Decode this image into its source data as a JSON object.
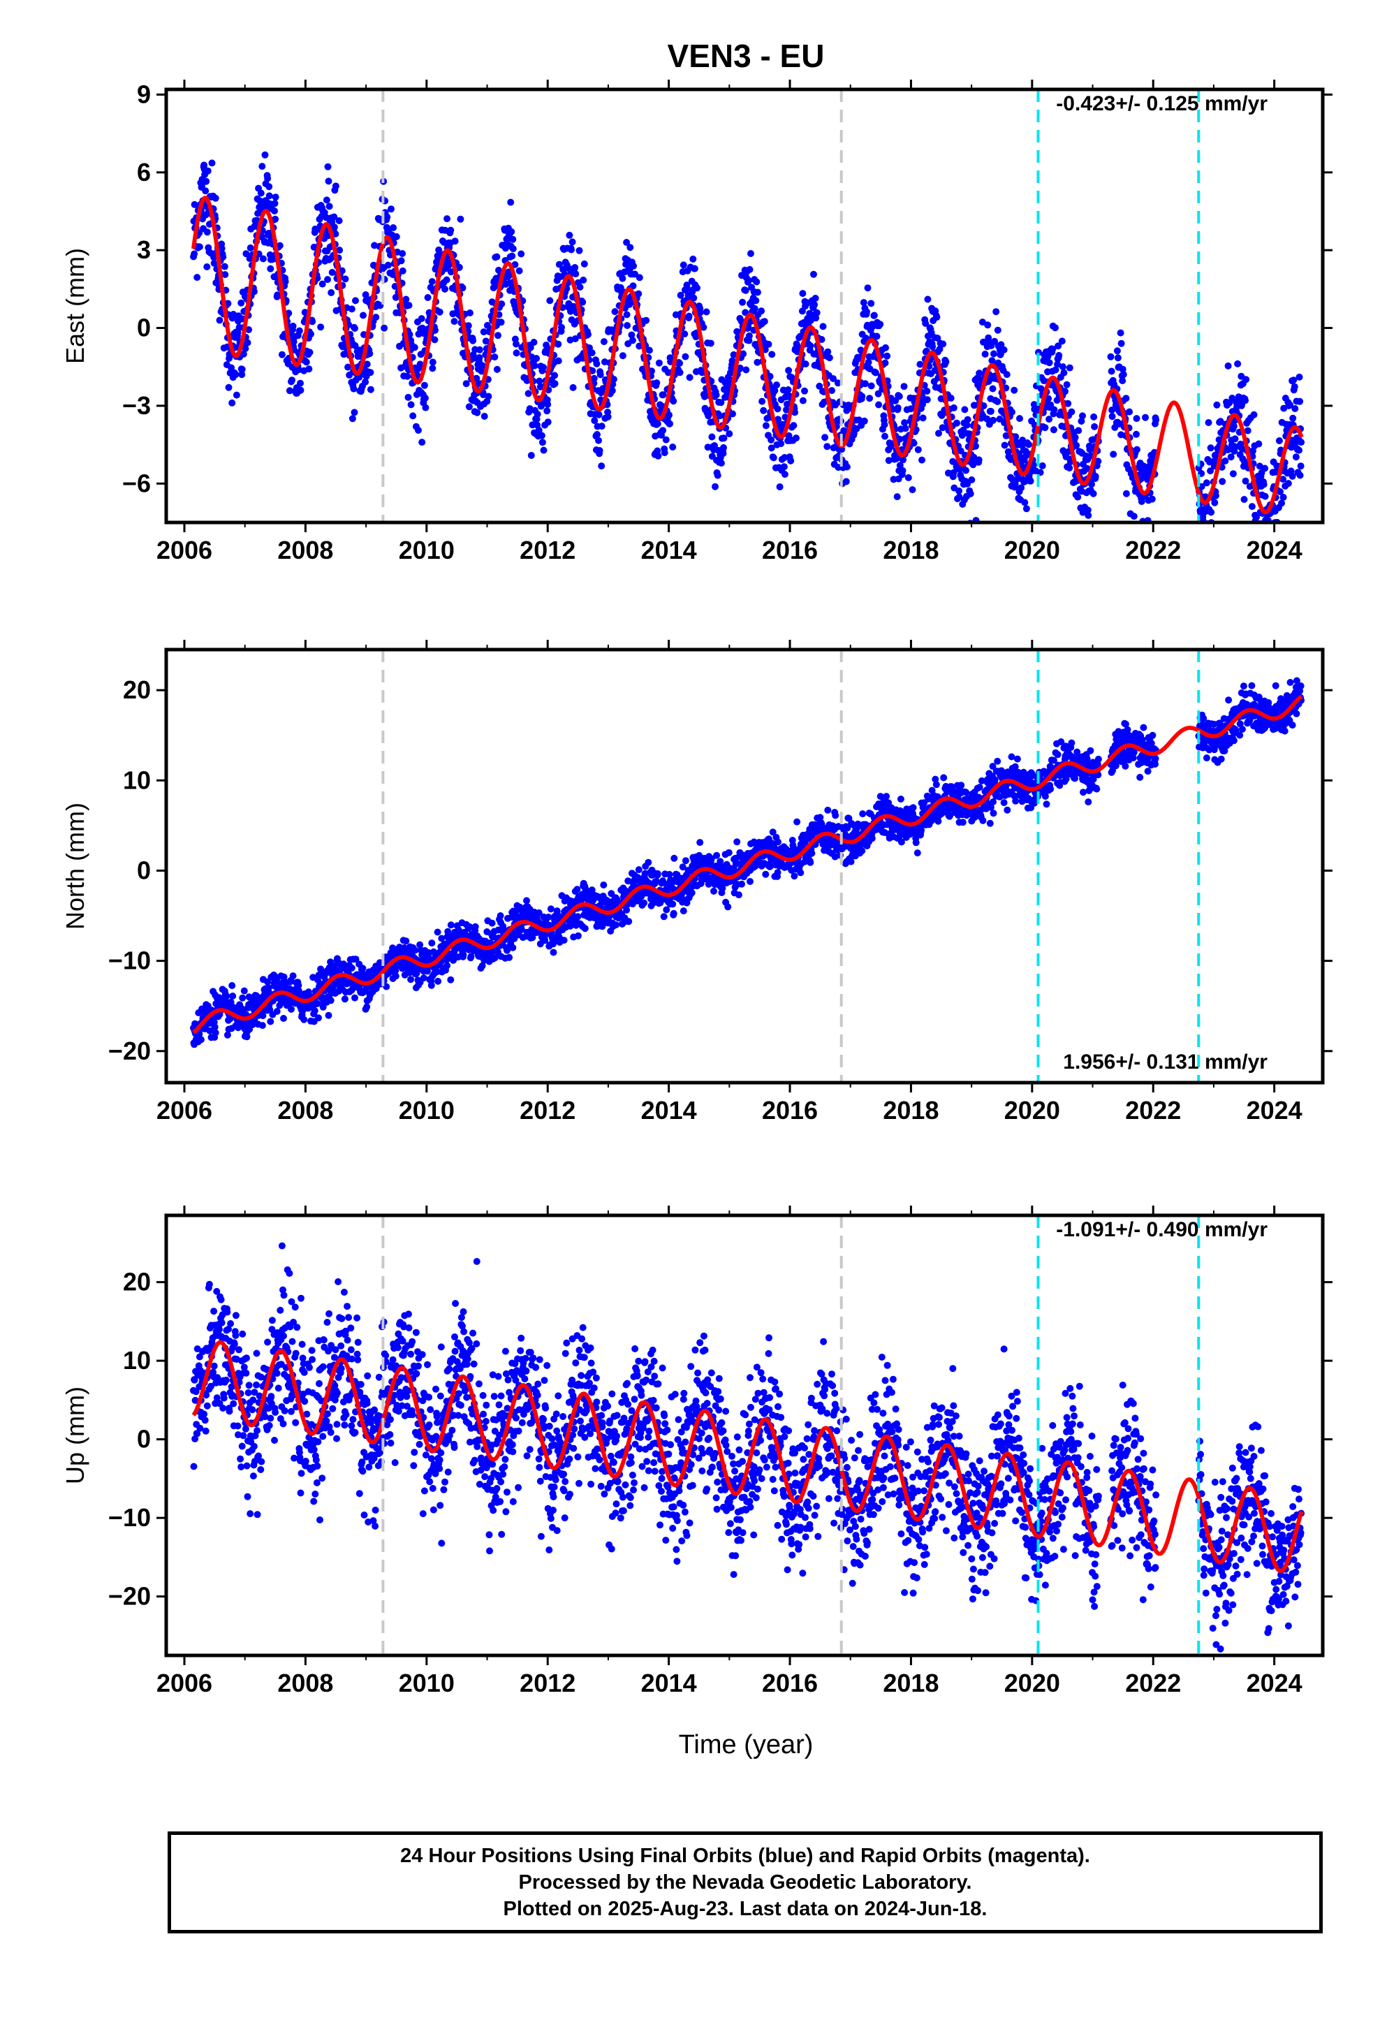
{
  "title": "VEN3 - EU",
  "xlabel": "Time (year)",
  "xticks": [
    2006,
    2008,
    2010,
    2012,
    2014,
    2016,
    2018,
    2020,
    2022,
    2024
  ],
  "xlim": [
    2005.7,
    2024.8
  ],
  "vertical_lines": [
    {
      "year": 2009.28,
      "color": "#c8c8c8"
    },
    {
      "year": 2016.85,
      "color": "#c8c8c8"
    },
    {
      "year": 2020.1,
      "color": "#00e5ee"
    },
    {
      "year": 2022.75,
      "color": "#00e5ee"
    }
  ],
  "colors": {
    "points": "#0000ff",
    "model": "#ff0000",
    "gray_line": "#c8c8c8",
    "cyan_line": "#00e5ee"
  },
  "chart_data": [
    {
      "type": "scatter",
      "name": "East",
      "ylabel": "East (mm)",
      "ylim": [
        -7.5,
        9.2
      ],
      "yticks": [
        -6,
        -3,
        0,
        3,
        6,
        9
      ],
      "velocity": "-0.423+/- 0.125 mm/yr",
      "annotation_position": "top-right",
      "model": {
        "offset": 2.2,
        "trend": -0.423,
        "amplitude": 3.0,
        "amp_decay": 0.03,
        "phase_peak": 0.35,
        "jumps": [
          {
            "year": 2016.85,
            "delta": 0.0
          }
        ]
      },
      "data_range": [
        2006.15,
        2024.45
      ],
      "scatter_sd": 1.0
    },
    {
      "type": "scatter",
      "name": "North",
      "ylabel": "North (mm)",
      "ylim": [
        -23.5,
        24.5
      ],
      "yticks": [
        -20,
        -10,
        0,
        10,
        20
      ],
      "velocity": "1.956+/- 0.131 mm/yr",
      "annotation_position": "bottom-right",
      "model": {
        "offset": -17.5,
        "trend": 1.956,
        "amplitude": 0.9,
        "amp_decay": 0.0,
        "phase_peak": 0.55,
        "jumps": []
      },
      "data_range": [
        2006.15,
        2024.45
      ],
      "scatter_sd": 1.1
    },
    {
      "type": "scatter",
      "name": "Up",
      "ylabel": "Up (mm)",
      "ylim": [
        -27.5,
        28.5
      ],
      "yticks": [
        -20,
        -10,
        0,
        10,
        20
      ],
      "velocity": "-1.091+/- 0.490 mm/yr",
      "annotation_position": "top-right",
      "model": {
        "offset": 8.0,
        "trend": -1.091,
        "amplitude": 5.0,
        "amp_decay": 0.0,
        "phase_peak": 0.6,
        "jumps": []
      },
      "data_range": [
        2006.15,
        2024.45
      ],
      "scatter_sd": 4.5
    }
  ],
  "footer": {
    "line1": "24 Hour Positions Using Final Orbits (blue) and Rapid Orbits (magenta).",
    "line2": "Processed by the Nevada Geodetic Laboratory.",
    "line3": "Plotted on 2025-Aug-23. Last data on 2024-Jun-18."
  }
}
